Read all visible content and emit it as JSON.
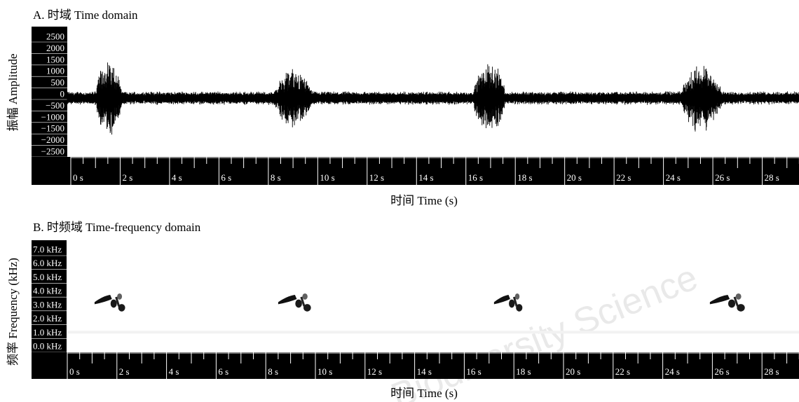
{
  "watermark": "Biodiversity Science",
  "colors": {
    "signal": "#000000",
    "axis_bar": "#000000",
    "axis_text": "#ffffff",
    "background": "#ffffff"
  },
  "chart_data": [
    {
      "type": "line",
      "panel_title": "A. 时域 Time domain",
      "xlabel": "时间 Time (s)",
      "ylabel": "振幅 Amplitude",
      "xlim": [
        0,
        30
      ],
      "ylim": [
        -2500,
        2500
      ],
      "y_ticks": [
        "2500",
        "2000",
        "1500",
        "1000",
        "500",
        "0",
        "−500",
        "−1000",
        "−1500",
        "−2000",
        "−2500"
      ],
      "x_ticks": [
        "0 s",
        "2 s",
        "4 s",
        "6 s",
        "8 s",
        "10 s",
        "12 s",
        "14 s",
        "16 s",
        "18 s",
        "20 s",
        "22 s",
        "24 s",
        "26 s",
        "28 s"
      ],
      "noise_amplitude": 300,
      "bursts": [
        {
          "start": 1.1,
          "end": 2.3,
          "peak": 1800
        },
        {
          "start": 8.4,
          "end": 10.1,
          "peak": 1350
        },
        {
          "start": 16.6,
          "end": 18.0,
          "peak": 1700
        },
        {
          "start": 25.1,
          "end": 26.9,
          "peak": 1600
        }
      ],
      "grid": false
    },
    {
      "type": "heatmap",
      "panel_title": "B. 时频域 Time-frequency domain",
      "xlabel": "时间 Time (s)",
      "ylabel": "频率 Frequency (kHz)",
      "xlim": [
        0,
        30
      ],
      "ylim": [
        0,
        7.5
      ],
      "y_ticks": [
        "7.0 kHz",
        "6.0 kHz",
        "5.0 kHz",
        "4.0 kHz",
        "3.0 kHz",
        "2.0 kHz",
        "1.0 kHz",
        "0.0 kHz"
      ],
      "x_ticks": [
        "0 s",
        "2 s",
        "4 s",
        "6 s",
        "8 s",
        "10 s",
        "12 s",
        "14 s",
        "16 s",
        "18 s",
        "20 s",
        "22 s",
        "24 s",
        "26 s",
        "28 s"
      ],
      "calls": [
        {
          "start": 1.1,
          "end": 2.5,
          "freq_low": 2.5,
          "freq_high": 4.0
        },
        {
          "start": 8.5,
          "end": 10.0,
          "freq_low": 2.5,
          "freq_high": 4.0
        },
        {
          "start": 17.2,
          "end": 18.5,
          "freq_low": 2.5,
          "freq_high": 4.0
        },
        {
          "start": 25.9,
          "end": 27.5,
          "freq_low": 2.5,
          "freq_high": 4.0
        }
      ],
      "grid": false
    }
  ]
}
